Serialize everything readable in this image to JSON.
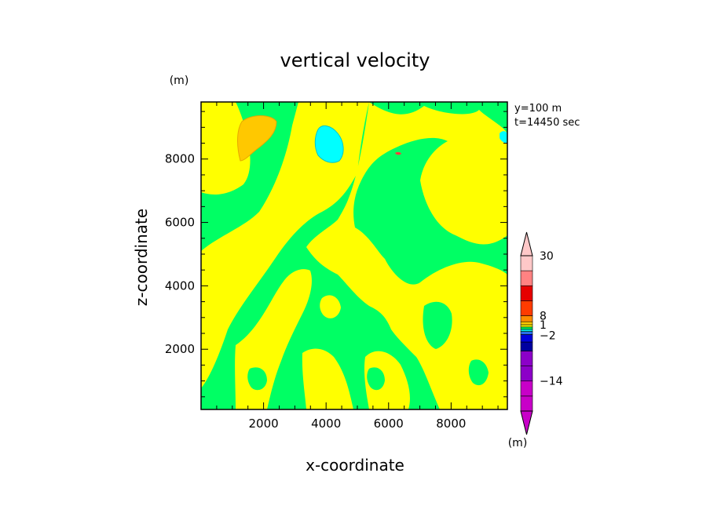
{
  "chart_data": {
    "type": "heatmap",
    "title": "vertical velocity",
    "xlabel": "x-coordinate",
    "ylabel": "z-coordinate",
    "y_unit": "(m)",
    "colorbar_unit": "(m)",
    "annotation": [
      "y=100  m",
      "t=14450 sec"
    ],
    "xlim": [
      0,
      9800
    ],
    "ylim": [
      100,
      9800
    ],
    "x_ticks": [
      2000,
      4000,
      6000,
      8000
    ],
    "y_ticks": [
      2000,
      4000,
      6000,
      8000
    ],
    "colorbar": {
      "tick_labels": [
        {
          "label": "30",
          "value": 30
        },
        {
          "label": "8",
          "value": 8
        },
        {
          "label": "1",
          "value": 1
        },
        {
          "label": "-2",
          "value": -2
        },
        {
          "label": "-14",
          "value": -14
        }
      ],
      "bins": [
        {
          "color": "#c800c8"
        },
        {
          "color": "#c800c8"
        },
        {
          "color": "#8c00c8"
        },
        {
          "color": "#8c00c8"
        },
        {
          "color": "#0000a0"
        },
        {
          "color": "#0000dc"
        },
        {
          "color": "#2a6ee8"
        },
        {
          "color": "#00dcdc"
        },
        {
          "color": "#00ff64"
        },
        {
          "color": "#ffff00"
        },
        {
          "color": "#ffc800"
        },
        {
          "color": "#ff8c00"
        },
        {
          "color": "#ff3c00"
        },
        {
          "color": "#e60000"
        },
        {
          "color": "#ff8282"
        },
        {
          "color": "#ffc8c8"
        }
      ]
    },
    "field_colors": {
      "green": "#00ff64",
      "yellow": "#ffff00",
      "orange": "#ffc800",
      "cyan": "#00ffff",
      "red": "#ff3c3c"
    }
  }
}
